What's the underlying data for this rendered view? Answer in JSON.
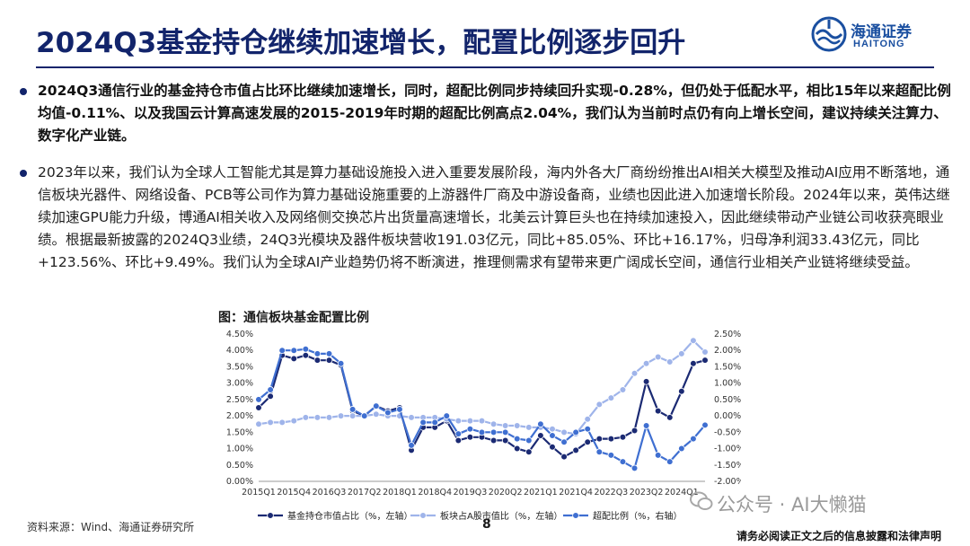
{
  "title": "2024Q3基金持仓继续加速增长，配置比例逐步回升",
  "logo": {
    "cn": "海通证券",
    "en": "HAITONG",
    "icon": "haitong-logo-icon"
  },
  "bullets": [
    "2024Q3通信行业的基金持仓市值占比环比继续加速增长，同时，超配比例同步持续回升实现-0.28%，但仍处于低配水平，相比15年以来超配比例均值-0.11%、以及我国云计算高速发展的2015-2019年时期的超配比例高点2.04%，我们认为当前时点仍有向上增长空间，建议持续关注算力、数字化产业链。",
    "2023年以来，我们认为全球人工智能尤其是算力基础设施投入进入重要发展阶段，海内外各大厂商纷纷推出AI相关大模型及推动AI应用不断落地，通信板块光器件、网络设备、PCB等公司作为算力基础设施重要的上游器件厂商及中游设备商，业绩也因此进入加速增长阶段。2024年以来，英伟达继续加速GPU能力升级，博通AI相关收入及网络侧交换芯片出货量高速增长，北美云计算巨头也在持续加速投入，因此继续带动产业链公司收获亮眼业绩。根据最新披露的2024Q3业绩，24Q3光模块及器件板块营收191.03亿元，同比+85.05%、环比+16.17%，归母净利润33.43亿元，同比+123.56%、环比+9.49%。我们认为全球AI产业趋势仍将不断演进，推理侧需求有望带来更广阔成长空间，通信行业相关产业链将继续受益。"
  ],
  "figure_caption": "图：通信板块基金配置比例",
  "source": "资料来源：Wind、海通证券研究所",
  "page_number": "8",
  "watermark": "公众号 · AI大懒猫",
  "disclaimer": "请务必阅读正文之后的信息披露和法律声明",
  "colors": {
    "navy": "#12246b",
    "dark_series": "#1b2a73",
    "light_series": "#9fb4ea",
    "mid_series": "#3f6fd1"
  },
  "chart_data": {
    "type": "line",
    "categories": [
      "2015Q1",
      "2015Q2",
      "2015Q3",
      "2015Q4",
      "2016Q1",
      "2016Q2",
      "2016Q3",
      "2016Q4",
      "2017Q1",
      "2017Q2",
      "2017Q3",
      "2017Q4",
      "2018Q1",
      "2018Q2",
      "2018Q3",
      "2018Q4",
      "2019Q1",
      "2019Q2",
      "2019Q3",
      "2019Q4",
      "2020Q1",
      "2020Q2",
      "2020Q3",
      "2020Q4",
      "2021Q1",
      "2021Q2",
      "2021Q3",
      "2021Q4",
      "2022Q1",
      "2022Q2",
      "2022Q3",
      "2022Q4",
      "2023Q1",
      "2023Q2",
      "2023Q3",
      "2023Q4",
      "2024Q1",
      "2024Q2",
      "2024Q3"
    ],
    "tick_labels": [
      "2015Q1",
      "2015Q4",
      "2016Q3",
      "2017Q2",
      "2018Q1",
      "2018Q4",
      "2019Q3",
      "2020Q2",
      "2021Q1",
      "2021Q4",
      "2022Q3",
      "2023Q2",
      "2024Q1"
    ],
    "left_axis": {
      "min": 0,
      "max": 4.5,
      "step": 0.5,
      "format": "percent2"
    },
    "right_axis": {
      "min": -2.0,
      "max": 2.5,
      "step": 0.5,
      "format": "percent2"
    },
    "series": [
      {
        "name": "基金持仓市值占比（%，左轴）",
        "axis": "left",
        "color": "#1b2a73",
        "values": [
          2.25,
          2.6,
          3.85,
          3.75,
          3.85,
          3.7,
          3.7,
          3.55,
          2.15,
          2.0,
          2.3,
          2.15,
          2.25,
          0.95,
          1.65,
          1.65,
          1.85,
          1.25,
          1.35,
          1.35,
          1.25,
          1.25,
          1.0,
          0.9,
          1.4,
          1.05,
          0.75,
          0.95,
          1.2,
          1.3,
          1.3,
          1.35,
          1.55,
          3.05,
          2.15,
          1.95,
          2.75,
          3.6,
          3.7
        ]
      },
      {
        "name": "板块占A股市值比（%，左轴）",
        "axis": "left",
        "color": "#9fb4ea",
        "values": [
          1.75,
          1.8,
          1.8,
          1.85,
          1.95,
          1.95,
          1.95,
          2.0,
          2.0,
          2.0,
          2.05,
          2.0,
          2.0,
          1.95,
          1.95,
          1.95,
          1.9,
          1.85,
          1.85,
          1.85,
          1.75,
          1.7,
          1.7,
          1.65,
          1.65,
          1.6,
          1.5,
          1.45,
          1.9,
          2.35,
          2.55,
          2.8,
          3.3,
          3.6,
          3.8,
          3.65,
          3.9,
          4.3,
          3.95
        ]
      },
      {
        "name": "超配比例（%，右轴）",
        "axis": "right",
        "color": "#3f6fd1",
        "values": [
          0.5,
          0.8,
          2.0,
          2.0,
          2.04,
          1.9,
          1.9,
          1.6,
          0.2,
          0.0,
          0.3,
          0.1,
          0.2,
          -0.9,
          -0.2,
          -0.2,
          0.0,
          -0.55,
          -0.4,
          -0.5,
          -0.5,
          -0.5,
          -0.7,
          -0.75,
          -0.25,
          -0.6,
          -0.8,
          -0.5,
          -0.4,
          -1.1,
          -1.2,
          -1.4,
          -1.6,
          -0.3,
          -1.2,
          -1.4,
          -1.0,
          -0.7,
          -0.28
        ]
      }
    ],
    "legend_position": "bottom"
  }
}
